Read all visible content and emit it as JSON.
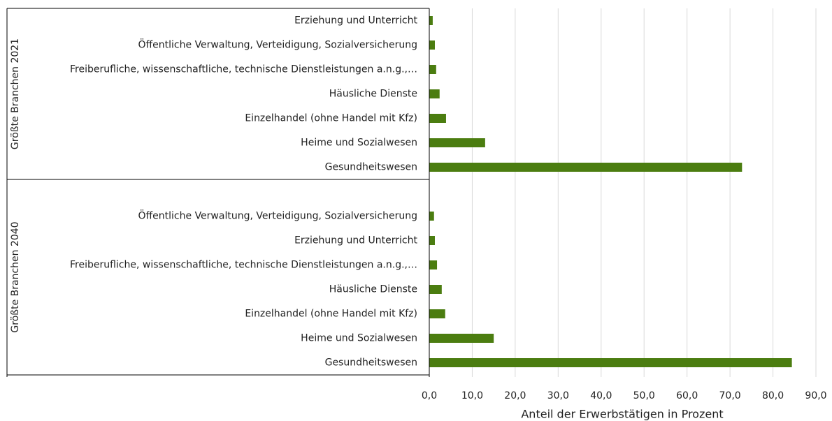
{
  "chart_data": {
    "type": "bar",
    "orientation": "horizontal",
    "color": "#4b7d10",
    "grid": true,
    "xlabel": "Anteil der Erwerbstätigen in Prozent",
    "xlim": [
      0,
      90
    ],
    "xticks": [
      {
        "value": 0,
        "label": "0,0"
      },
      {
        "value": 10,
        "label": "10,0"
      },
      {
        "value": 20,
        "label": "20,0"
      },
      {
        "value": 30,
        "label": "30,0"
      },
      {
        "value": 40,
        "label": "40,0"
      },
      {
        "value": 50,
        "label": "50,0"
      },
      {
        "value": 60,
        "label": "60,0"
      },
      {
        "value": 70,
        "label": "70,0"
      },
      {
        "value": 80,
        "label": "80,0"
      },
      {
        "value": 90,
        "label": "90,0"
      }
    ],
    "groups": [
      {
        "name": "Größte Branchen 2021",
        "categories": [
          "Erziehung und Unterricht",
          "Öffentliche Verwaltung, Verteidigung, Sozialversicherung",
          "Freiberufliche, wissenschaftliche, technische Dienstleistungen a.n.g.,…",
          "Häusliche Dienste",
          "Einzelhandel (ohne Handel mit Kfz)",
          "Heime und Sozialwesen",
          "Gesundheitswesen"
        ],
        "values": [
          0.8,
          1.3,
          1.6,
          2.4,
          3.9,
          13.0,
          72.8
        ]
      },
      {
        "name": "Größte Branchen 2040",
        "categories": [
          null,
          "Öffentliche Verwaltung, Verteidigung, Sozialversicherung",
          "Erziehung und Unterricht",
          "Freiberufliche, wissenschaftliche, technische Dienstleistungen a.n.g.,…",
          "Häusliche Dienste",
          "Einzelhandel (ohne Handel mit Kfz)",
          "Heime und Sozialwesen",
          "Gesundheitswesen"
        ],
        "values": [
          null,
          1.1,
          1.3,
          1.8,
          2.9,
          3.7,
          15.0,
          84.4
        ]
      }
    ]
  }
}
